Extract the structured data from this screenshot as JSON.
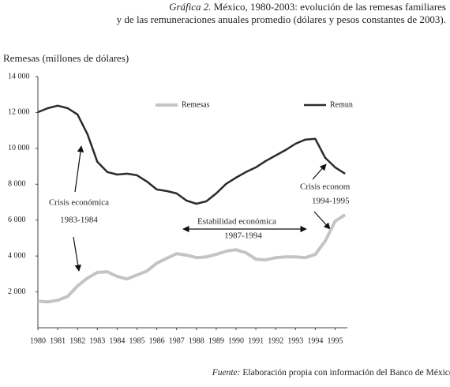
{
  "chart_data": {
    "type": "line",
    "title_label": "Gráfica 2.",
    "title": "México, 1980-2003: evolución de las remesas familiares",
    "subtitle": "y de las remuneraciones anuales promedio (dólares y pesos constantes de 2003).",
    "y_label": "Remesas (millones de dólares)",
    "x": [
      1980,
      1980.5,
      1981,
      1981.5,
      1982,
      1982.5,
      1983,
      1983.5,
      1984,
      1984.5,
      1985,
      1985.5,
      1986,
      1986.5,
      1987,
      1987.5,
      1988,
      1988.5,
      1989,
      1989.5,
      1990,
      1990.5,
      1991,
      1991.5,
      1992,
      1992.5,
      1993,
      1993.5,
      1994,
      1994.5,
      1995,
      1995.5
    ],
    "series": [
      {
        "name": "Remesas",
        "color": "#c4c4c4",
        "values": [
          1490,
          1440,
          1530,
          1750,
          2330,
          2770,
          3080,
          3120,
          2860,
          2720,
          2940,
          3160,
          3600,
          3870,
          4130,
          4050,
          3910,
          3950,
          4090,
          4270,
          4350,
          4180,
          3820,
          3780,
          3910,
          3950,
          3950,
          3910,
          4090,
          4840,
          5940,
          6300
        ]
      },
      {
        "name": "Remun",
        "color": "#2b2b2b",
        "values": [
          12020,
          12240,
          12380,
          12240,
          11890,
          10790,
          9250,
          8680,
          8540,
          8590,
          8500,
          8150,
          7710,
          7620,
          7490,
          7090,
          6910,
          7050,
          7490,
          8020,
          8370,
          8680,
          8940,
          9300,
          9600,
          9910,
          10260,
          10490,
          10530,
          9470,
          8940,
          8590
        ]
      }
    ],
    "xlim": [
      1980,
      1995.6
    ],
    "xticks": [
      1980,
      1981,
      1982,
      1983,
      1984,
      1985,
      1986,
      1987,
      1988,
      1989,
      1990,
      1991,
      1992,
      1993,
      1994,
      1995
    ],
    "ylim": [
      0,
      14000
    ],
    "yticks": [
      {
        "value": 2000,
        "label": "2 000"
      },
      {
        "value": 4000,
        "label": "4 000"
      },
      {
        "value": 6000,
        "label": "6 000"
      },
      {
        "value": 8000,
        "label": "8 000"
      },
      {
        "value": 10000,
        "label": "10 000"
      },
      {
        "value": 12000,
        "label": "12 000"
      },
      {
        "value": 14000,
        "label": "14 000"
      }
    ],
    "legend": "top",
    "annotations": [
      "Crisis económica",
      "1983-1984",
      "Estabilidad económica",
      "1987-1994",
      "Crisis econom",
      "1994-1995"
    ],
    "source_label": "Fuente:",
    "source": "Elaboración propia con información del Banco de México y del INEGI."
  }
}
